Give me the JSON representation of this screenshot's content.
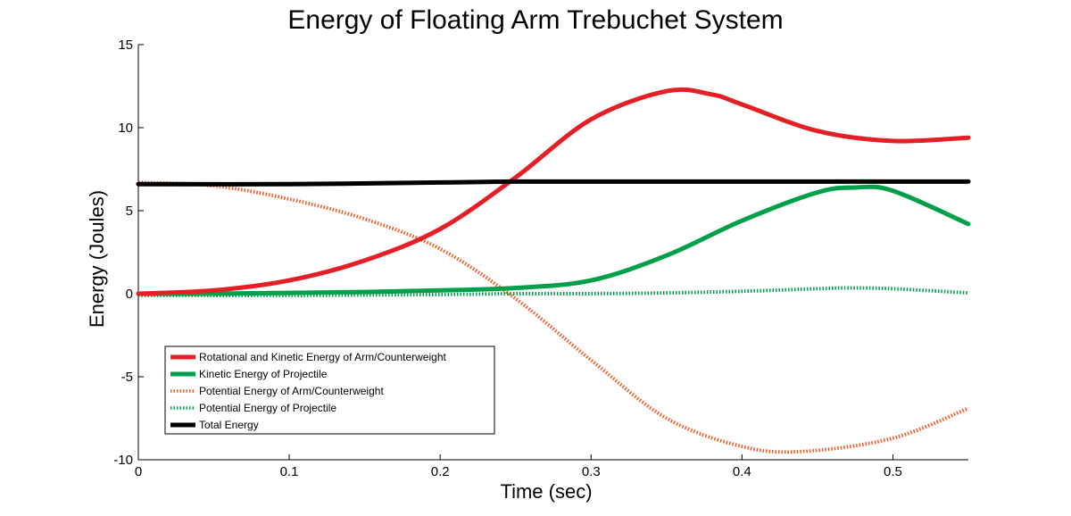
{
  "chart_data": {
    "type": "line",
    "title": "Energy of Floating Arm Trebuchet System",
    "xlabel": "Time (sec)",
    "ylabel": "Energy (Joules)",
    "xlim": [
      0,
      0.55
    ],
    "ylim": [
      -10,
      15
    ],
    "xticks": [
      "0",
      "0.1",
      "0.2",
      "0.3",
      "0.4",
      "0.5"
    ],
    "xtick_values": [
      0,
      0.1,
      0.2,
      0.3,
      0.4,
      0.5
    ],
    "yticks": [
      "-10",
      "-5",
      "0",
      "5",
      "10",
      "15"
    ],
    "ytick_values": [
      -10,
      -5,
      0,
      5,
      10,
      15
    ],
    "grid": false,
    "legend_position": "bottom-left",
    "series": [
      {
        "name": "Rotational and Kinetic Energy of Arm/Counterweight",
        "color": "#e41f26",
        "style": "solid",
        "x": [
          0,
          0.05,
          0.1,
          0.15,
          0.2,
          0.25,
          0.3,
          0.35,
          0.38,
          0.4,
          0.45,
          0.5,
          0.55
        ],
        "y": [
          0,
          0.2,
          0.8,
          2.0,
          3.9,
          7.0,
          10.5,
          12.2,
          12.0,
          11.4,
          9.8,
          9.2,
          9.4
        ]
      },
      {
        "name": "Kinetic Energy of Projectile",
        "color": "#00a04b",
        "style": "solid",
        "x": [
          0,
          0.05,
          0.1,
          0.15,
          0.2,
          0.25,
          0.3,
          0.35,
          0.4,
          0.45,
          0.475,
          0.5,
          0.55
        ],
        "y": [
          0,
          0,
          0.05,
          0.1,
          0.2,
          0.35,
          0.8,
          2.3,
          4.4,
          6.1,
          6.4,
          6.2,
          4.2
        ]
      },
      {
        "name": "Potential Energy of Arm/Counterweight",
        "color": "#f15a24",
        "style": "dotted",
        "x": [
          0,
          0.05,
          0.1,
          0.15,
          0.2,
          0.25,
          0.3,
          0.35,
          0.4,
          0.44,
          0.5,
          0.55
        ],
        "y": [
          6.7,
          6.5,
          5.7,
          4.5,
          2.7,
          -0.3,
          -4.0,
          -7.5,
          -9.2,
          -9.5,
          -8.7,
          -6.9
        ]
      },
      {
        "name": "Potential Energy of Projectile",
        "color": "#00a04b",
        "style": "dotted",
        "x": [
          0,
          0.1,
          0.2,
          0.25,
          0.3,
          0.35,
          0.4,
          0.45,
          0.47,
          0.5,
          0.55
        ],
        "y": [
          -0.1,
          -0.1,
          -0.05,
          0,
          0,
          0.05,
          0.15,
          0.3,
          0.35,
          0.3,
          0.05
        ]
      },
      {
        "name": "Total Energy",
        "color": "#000000",
        "style": "solid",
        "x": [
          0,
          0.1,
          0.2,
          0.25,
          0.3,
          0.4,
          0.5,
          0.55
        ],
        "y": [
          6.6,
          6.6,
          6.7,
          6.75,
          6.75,
          6.75,
          6.75,
          6.75
        ]
      }
    ]
  }
}
